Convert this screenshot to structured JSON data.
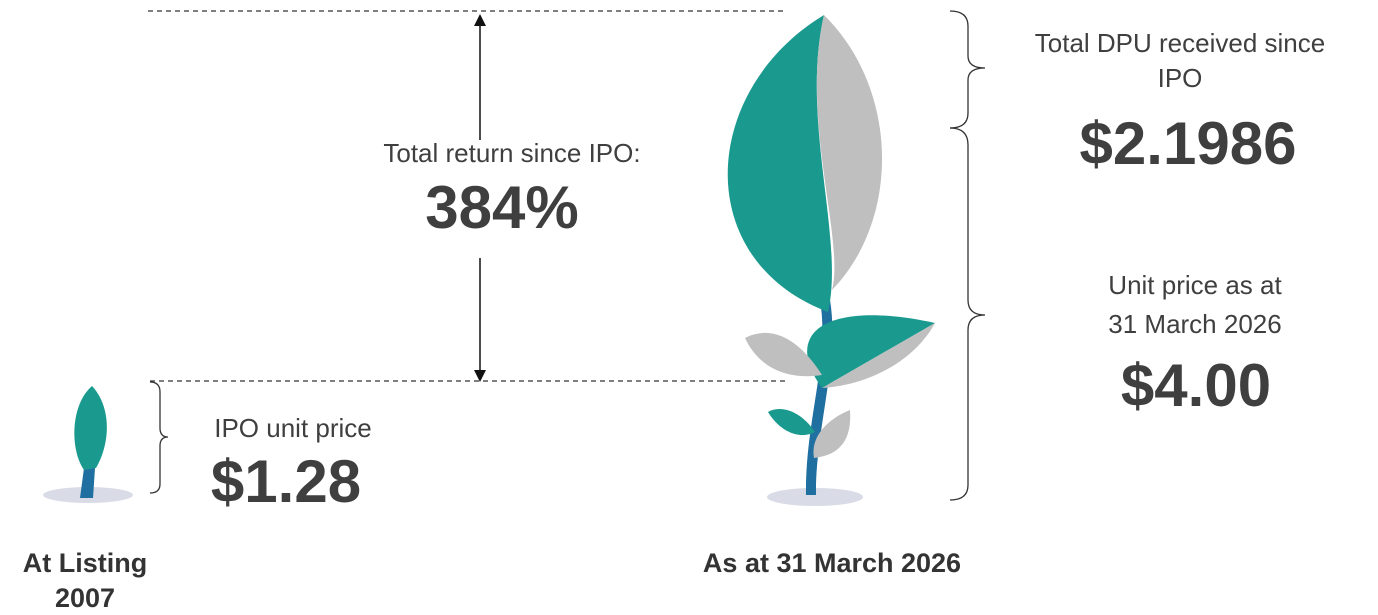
{
  "return_block": {
    "label": "Total return since IPO:",
    "value": "384%"
  },
  "ipo": {
    "label": "IPO unit price",
    "value": "$1.28"
  },
  "dpu": {
    "label_lines": [
      "Total DPU received since",
      "IPO"
    ],
    "value": "$2.1986"
  },
  "unit_price": {
    "label_lines": [
      "Unit price as at",
      "31 March 2026"
    ],
    "value": "$4.00"
  },
  "captions": {
    "listing": [
      "At Listing",
      "2007"
    ],
    "current": "As at 31 March 2026"
  }
}
